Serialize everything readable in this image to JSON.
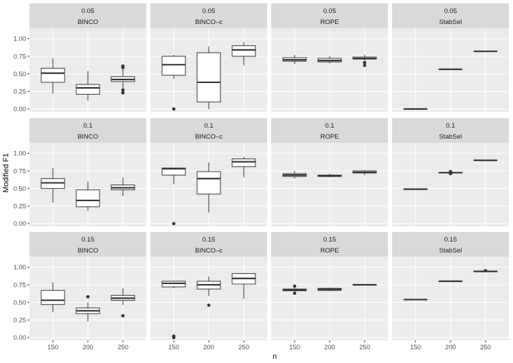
{
  "chart_data": {
    "type": "boxplot",
    "title": "",
    "xlabel": "n",
    "ylabel": "Modified F1",
    "categories": [
      "150",
      "200",
      "250"
    ],
    "ylim": [
      -0.04,
      1.15
    ],
    "yticks": [
      0.0,
      0.25,
      0.5,
      0.75,
      1.0
    ],
    "ytick_labels": [
      "0.00",
      "0.25",
      "0.50",
      "0.75",
      "1.00"
    ],
    "row_labels": [
      "0.05",
      "0.1",
      "0.15"
    ],
    "col_labels": [
      "BINCO",
      "BINCO–c",
      "ROPE",
      "StabSel"
    ],
    "colors": {
      "panel": "#ebebeb",
      "grid_major": "#ffffff",
      "grid_minor": "#f5f5f5",
      "strip": "#d9d9d9",
      "box_fill": "#ffffff",
      "box_line": "#333333"
    },
    "panels": [
      {
        "row": "0.05",
        "method": "BINCO",
        "boxes": [
          {
            "x": "150",
            "wlo": 0.22,
            "q1": 0.38,
            "med": 0.51,
            "q3": 0.58,
            "whi": 0.72,
            "outliers": []
          },
          {
            "x": "200",
            "wlo": 0.12,
            "q1": 0.21,
            "med": 0.3,
            "q3": 0.35,
            "whi": 0.54,
            "outliers": []
          },
          {
            "x": "250",
            "wlo": 0.29,
            "q1": 0.39,
            "med": 0.42,
            "q3": 0.46,
            "whi": 0.57,
            "outliers": [
              0.61,
              0.59,
              0.27,
              0.23
            ]
          }
        ]
      },
      {
        "row": "0.05",
        "method": "BINCO–c",
        "boxes": [
          {
            "x": "150",
            "wlo": 0.43,
            "q1": 0.48,
            "med": 0.63,
            "q3": 0.75,
            "whi": 0.77,
            "outliers": [
              0.0
            ]
          },
          {
            "x": "200",
            "wlo": 0.0,
            "q1": 0.1,
            "med": 0.38,
            "q3": 0.8,
            "whi": 0.89,
            "outliers": []
          },
          {
            "x": "250",
            "wlo": 0.62,
            "q1": 0.75,
            "med": 0.84,
            "q3": 0.9,
            "whi": 0.95,
            "outliers": []
          }
        ]
      },
      {
        "row": "0.05",
        "method": "ROPE",
        "boxes": [
          {
            "x": "150",
            "wlo": 0.64,
            "q1": 0.68,
            "med": 0.7,
            "q3": 0.73,
            "whi": 0.77,
            "outliers": []
          },
          {
            "x": "200",
            "wlo": 0.65,
            "q1": 0.67,
            "med": 0.69,
            "q3": 0.72,
            "whi": 0.75,
            "outliers": []
          },
          {
            "x": "250",
            "wlo": 0.69,
            "q1": 0.71,
            "med": 0.72,
            "q3": 0.74,
            "whi": 0.77,
            "outliers": [
              0.66,
              0.62
            ]
          }
        ]
      },
      {
        "row": "0.05",
        "method": "StabSel",
        "boxes": [
          {
            "x": "150",
            "wlo": 0.0,
            "q1": 0.0,
            "med": 0.0,
            "q3": 0.0,
            "whi": 0.0,
            "outliers": []
          },
          {
            "x": "200",
            "wlo": 0.565,
            "q1": 0.565,
            "med": 0.565,
            "q3": 0.565,
            "whi": 0.565,
            "outliers": []
          },
          {
            "x": "250",
            "wlo": 0.82,
            "q1": 0.82,
            "med": 0.82,
            "q3": 0.82,
            "whi": 0.82,
            "outliers": []
          }
        ]
      },
      {
        "row": "0.1",
        "method": "BINCO",
        "boxes": [
          {
            "x": "150",
            "wlo": 0.3,
            "q1": 0.5,
            "med": 0.58,
            "q3": 0.64,
            "whi": 0.79,
            "outliers": []
          },
          {
            "x": "200",
            "wlo": 0.18,
            "q1": 0.24,
            "med": 0.33,
            "q3": 0.48,
            "whi": 0.6,
            "outliers": []
          },
          {
            "x": "250",
            "wlo": 0.39,
            "q1": 0.48,
            "med": 0.51,
            "q3": 0.55,
            "whi": 0.65,
            "outliers": []
          }
        ]
      },
      {
        "row": "0.1",
        "method": "BINCO–c",
        "boxes": [
          {
            "x": "150",
            "wlo": 0.56,
            "q1": 0.69,
            "med": 0.78,
            "q3": 0.79,
            "whi": 0.79,
            "outliers": [
              0.0
            ]
          },
          {
            "x": "200",
            "wlo": 0.16,
            "q1": 0.42,
            "med": 0.64,
            "q3": 0.74,
            "whi": 0.87,
            "outliers": []
          },
          {
            "x": "250",
            "wlo": 0.66,
            "q1": 0.81,
            "med": 0.88,
            "q3": 0.92,
            "whi": 0.95,
            "outliers": []
          }
        ]
      },
      {
        "row": "0.1",
        "method": "ROPE",
        "boxes": [
          {
            "x": "150",
            "wlo": 0.64,
            "q1": 0.67,
            "med": 0.69,
            "q3": 0.71,
            "whi": 0.75,
            "outliers": []
          },
          {
            "x": "200",
            "wlo": 0.66,
            "q1": 0.67,
            "med": 0.68,
            "q3": 0.69,
            "whi": 0.71,
            "outliers": []
          },
          {
            "x": "250",
            "wlo": 0.69,
            "q1": 0.72,
            "med": 0.73,
            "q3": 0.75,
            "whi": 0.76,
            "outliers": []
          }
        ]
      },
      {
        "row": "0.1",
        "method": "StabSel",
        "boxes": [
          {
            "x": "150",
            "wlo": 0.49,
            "q1": 0.485,
            "med": 0.49,
            "q3": 0.495,
            "whi": 0.49,
            "outliers": []
          },
          {
            "x": "200",
            "wlo": 0.715,
            "q1": 0.72,
            "med": 0.725,
            "q3": 0.73,
            "whi": 0.735,
            "outliers": [
              0.74,
              0.71
            ]
          },
          {
            "x": "250",
            "wlo": 0.9,
            "q1": 0.9,
            "med": 0.9,
            "q3": 0.9,
            "whi": 0.9,
            "outliers": []
          }
        ]
      },
      {
        "row": "0.15",
        "method": "BINCO",
        "boxes": [
          {
            "x": "150",
            "wlo": 0.36,
            "q1": 0.47,
            "med": 0.53,
            "q3": 0.67,
            "whi": 0.78,
            "outliers": []
          },
          {
            "x": "200",
            "wlo": 0.23,
            "q1": 0.34,
            "med": 0.38,
            "q3": 0.42,
            "whi": 0.5,
            "outliers": [
              0.58
            ]
          },
          {
            "x": "250",
            "wlo": 0.46,
            "q1": 0.53,
            "med": 0.56,
            "q3": 0.6,
            "whi": 0.7,
            "outliers": [
              0.31
            ]
          }
        ]
      },
      {
        "row": "0.15",
        "method": "BINCO–c",
        "boxes": [
          {
            "x": "150",
            "wlo": 0.7,
            "q1": 0.72,
            "med": 0.77,
            "q3": 0.8,
            "whi": 0.81,
            "outliers": [
              0.02,
              0.0
            ]
          },
          {
            "x": "200",
            "wlo": 0.59,
            "q1": 0.69,
            "med": 0.75,
            "q3": 0.8,
            "whi": 0.87,
            "outliers": [
              0.46
            ]
          },
          {
            "x": "250",
            "wlo": 0.55,
            "q1": 0.76,
            "med": 0.84,
            "q3": 0.91,
            "whi": 0.92,
            "outliers": []
          }
        ]
      },
      {
        "row": "0.15",
        "method": "ROPE",
        "boxes": [
          {
            "x": "150",
            "wlo": 0.66,
            "q1": 0.665,
            "med": 0.675,
            "q3": 0.69,
            "whi": 0.7,
            "outliers": [
              0.73,
              0.63
            ]
          },
          {
            "x": "200",
            "wlo": 0.66,
            "q1": 0.67,
            "med": 0.685,
            "q3": 0.7,
            "whi": 0.71,
            "outliers": []
          },
          {
            "x": "250",
            "wlo": 0.74,
            "q1": 0.745,
            "med": 0.75,
            "q3": 0.755,
            "whi": 0.76,
            "outliers": []
          }
        ]
      },
      {
        "row": "0.15",
        "method": "StabSel",
        "boxes": [
          {
            "x": "150",
            "wlo": 0.54,
            "q1": 0.54,
            "med": 0.54,
            "q3": 0.54,
            "whi": 0.54,
            "outliers": []
          },
          {
            "x": "200",
            "wlo": 0.8,
            "q1": 0.8,
            "med": 0.8,
            "q3": 0.8,
            "whi": 0.8,
            "outliers": []
          },
          {
            "x": "250",
            "wlo": 0.94,
            "q1": 0.935,
            "med": 0.94,
            "q3": 0.945,
            "whi": 0.94,
            "outliers": [
              0.95
            ]
          }
        ]
      }
    ]
  }
}
